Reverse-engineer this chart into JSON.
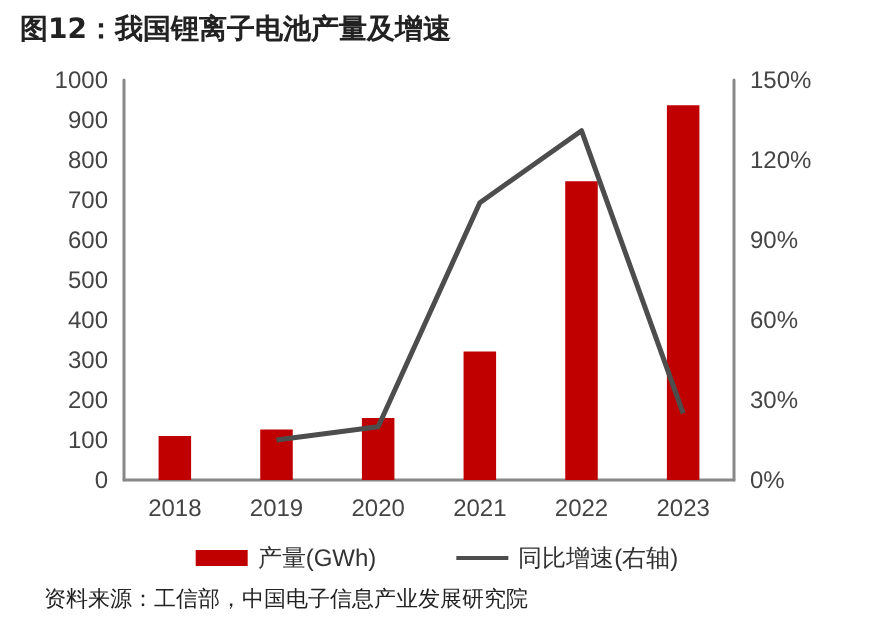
{
  "chart_data": {
    "type": "bar",
    "title": "图12：我国锂离子电池产量及增速",
    "categories": [
      "2018",
      "2019",
      "2020",
      "2021",
      "2022",
      "2023"
    ],
    "series": [
      {
        "name": "产量(GWh)",
        "color": "#c00000",
        "values": [
          110,
          126,
          155,
          321,
          747,
          937
        ]
      },
      {
        "name": "同比增速(右轴)",
        "type": "line",
        "axis": "y2",
        "color": "#4d4d4d",
        "values": [
          null,
          15,
          20,
          104,
          131,
          25
        ]
      }
    ],
    "ylim": [
      0,
      1000
    ],
    "yticks": [
      0,
      100,
      200,
      300,
      400,
      500,
      600,
      700,
      800,
      900,
      1000
    ],
    "y2lim": [
      0,
      150
    ],
    "y2ticks": [
      {
        "value": 0,
        "label": "0%"
      },
      {
        "value": 30,
        "label": "30%"
      },
      {
        "value": 60,
        "label": "60%"
      },
      {
        "value": 90,
        "label": "90%"
      },
      {
        "value": 120,
        "label": "120%"
      },
      {
        "value": 150,
        "label": "150%"
      }
    ],
    "grid": false,
    "legend": "bottom",
    "marker": "none",
    "line_style": "solid",
    "annotations": [
      "资料来源：工信部，中国电子信息产业发展研究院"
    ]
  }
}
